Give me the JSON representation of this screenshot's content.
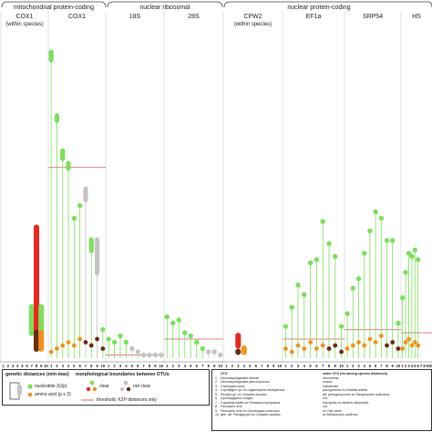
{
  "groups": [
    {
      "label": "mitochondrial protein-coding"
    },
    {
      "label": "nuclear ribosomal"
    },
    {
      "label": "nuclear protein-coding"
    }
  ],
  "colors": {
    "nucleotide_clear": "#7be05a",
    "nucleotide_not_clear": "#c4c4c4",
    "amino_clear": "#f0931e",
    "amino_not_clear": "#6b2a10",
    "red": "#e8281e",
    "threshold": "#e08080",
    "grid": "#b8b8b8"
  },
  "chart_data": {
    "type": "scatter",
    "panels": [
      {
        "title": "COX1",
        "subtitle": "(within species)"
      },
      {
        "title": "COX1",
        "subtitle": ""
      },
      {
        "title": "18S",
        "subtitle": ""
      },
      {
        "title": "28S",
        "subtitle": ""
      },
      {
        "title": "CPW2",
        "subtitle": "(within species)"
      },
      {
        "title": "EF1a",
        "subtitle": ""
      },
      {
        "title": "SRP54",
        "subtitle": ""
      },
      {
        "title": "HS",
        "subtitle": ""
      }
    ],
    "x_tick_labels": [
      "1",
      "2",
      "3",
      "4",
      "5",
      "6",
      "7",
      "8",
      "9",
      "10"
    ],
    "ylim": [
      0,
      1
    ],
    "series": [
      {
        "panel": 0,
        "ranges": [
          {
            "otu": 7,
            "kind": "nuc_clear",
            "min": 0.07,
            "max": 0.17,
            "vmin_color": "#c4c4c4"
          },
          {
            "otu": 8,
            "kind": "red",
            "min": 0.03,
            "max": 0.42
          },
          {
            "otu": 8,
            "kind": "amino",
            "min": 0.02,
            "max": 0.09
          },
          {
            "otu": 9,
            "kind": "nuc_clear",
            "min": 0.07,
            "max": 0.17
          },
          {
            "otu": 9,
            "kind": "amino_clear",
            "min": 0.02,
            "max": 0.09
          }
        ]
      },
      {
        "panel": 1,
        "nuc": [
          {
            "otu": 1,
            "min": 0.93,
            "max": 0.97,
            "clear": true
          },
          {
            "otu": 2,
            "min": 0.74,
            "max": 0.77,
            "clear": true
          },
          {
            "otu": 3,
            "min": 0.62,
            "max": 0.66,
            "clear": true
          },
          {
            "otu": 4,
            "min": 0.59,
            "max": 0.62,
            "clear": true
          },
          {
            "otu": 5,
            "min": 0.42,
            "max": 0.44,
            "clear": true
          },
          {
            "otu": 6,
            "min": 0.46,
            "max": 0.48,
            "clear": true
          },
          {
            "otu": 7,
            "min": 0.49,
            "max": 0.54,
            "clear": false
          },
          {
            "otu": 8,
            "min": 0.33,
            "max": 0.38,
            "clear": true
          },
          {
            "otu": 9,
            "min": 0.26,
            "max": 0.38,
            "clear": false
          },
          {
            "otu": 10,
            "min": 0.07,
            "max": 0.09,
            "clear": true
          }
        ],
        "amino": [
          {
            "otu": 1,
            "v": 0.02,
            "clear": true
          },
          {
            "otu": 2,
            "v": 0.03,
            "clear": true
          },
          {
            "otu": 3,
            "v": 0.04,
            "clear": true
          },
          {
            "otu": 4,
            "v": 0.05,
            "clear": true
          },
          {
            "otu": 5,
            "v": 0.04,
            "clear": true
          },
          {
            "otu": 6,
            "v": 0.06,
            "clear": true
          },
          {
            "otu": 7,
            "v": 0.05,
            "clear": false
          },
          {
            "otu": 8,
            "v": 0.04,
            "clear": false
          },
          {
            "otu": 9,
            "v": 0.06,
            "clear": false
          },
          {
            "otu": 10,
            "v": 0.03,
            "clear": false
          }
        ],
        "threshold": 0.6
      },
      {
        "panel": 2,
        "nuc": [
          {
            "otu": 1,
            "v": 0.06,
            "clear": true
          },
          {
            "otu": 2,
            "v": 0.05,
            "clear": true
          },
          {
            "otu": 3,
            "v": 0.07,
            "clear": true
          },
          {
            "otu": 4,
            "v": 0.05,
            "clear": true
          },
          {
            "otu": 5,
            "v": 0.03,
            "clear": false
          },
          {
            "otu": 6,
            "v": 0.02,
            "clear": false
          },
          {
            "otu": 7,
            "v": 0.01,
            "clear": false
          },
          {
            "otu": 8,
            "v": 0.01,
            "clear": false
          },
          {
            "otu": 9,
            "v": 0.01,
            "clear": false
          },
          {
            "otu": 10,
            "v": 0.01,
            "clear": false
          }
        ],
        "threshold": 0.01
      },
      {
        "panel": 3,
        "nuc": [
          {
            "otu": 1,
            "v": 0.13,
            "clear": true
          },
          {
            "otu": 2,
            "v": 0.11,
            "clear": true
          },
          {
            "otu": 3,
            "v": 0.12,
            "clear": true
          },
          {
            "otu": 4,
            "v": 0.08,
            "clear": true
          },
          {
            "otu": 5,
            "v": 0.07,
            "clear": true
          },
          {
            "otu": 6,
            "v": 0.05,
            "clear": true
          },
          {
            "otu": 7,
            "v": 0.03,
            "clear": true
          },
          {
            "otu": 8,
            "v": 0.02,
            "clear": false
          },
          {
            "otu": 9,
            "v": 0.02,
            "clear": false
          },
          {
            "otu": 10,
            "v": 0.01,
            "clear": false
          }
        ],
        "threshold": 0.06
      },
      {
        "panel": 4,
        "ranges": [
          {
            "otu": 3,
            "kind": "red",
            "min": 0.03,
            "max": 0.08
          },
          {
            "otu": 4,
            "kind": "amino_clear",
            "min": 0.01,
            "max": 0.04
          },
          {
            "otu": 3,
            "kind": "amino",
            "min": 0.01,
            "max": 0.03
          }
        ]
      },
      {
        "panel": 5,
        "nuc": [
          {
            "otu": 1,
            "v": 0.1,
            "clear": true
          },
          {
            "otu": 2,
            "v": 0.16,
            "clear": true
          },
          {
            "otu": 3,
            "v": 0.23,
            "clear": true
          },
          {
            "otu": 4,
            "v": 0.2,
            "clear": true
          },
          {
            "otu": 5,
            "v": 0.3,
            "clear": true
          },
          {
            "otu": 6,
            "v": 0.31,
            "clear": true
          },
          {
            "otu": 7,
            "v": 0.43,
            "clear": true
          },
          {
            "otu": 8,
            "v": 0.36,
            "clear": true
          },
          {
            "otu": 9,
            "v": 0.32,
            "clear": true
          },
          {
            "otu": 10,
            "v": 0.1,
            "clear": true
          }
        ],
        "amino": [
          {
            "otu": 1,
            "v": 0.03,
            "clear": true
          },
          {
            "otu": 2,
            "v": 0.02,
            "clear": true
          },
          {
            "otu": 3,
            "v": 0.04,
            "clear": true
          },
          {
            "otu": 4,
            "v": 0.03,
            "clear": true
          },
          {
            "otu": 5,
            "v": 0.05,
            "clear": true
          },
          {
            "otu": 6,
            "v": 0.03,
            "clear": true
          },
          {
            "otu": 7,
            "v": 0.04,
            "clear": true
          },
          {
            "otu": 8,
            "v": 0.03,
            "clear": false
          },
          {
            "otu": 9,
            "v": 0.04,
            "clear": false
          },
          {
            "otu": 10,
            "v": 0.02,
            "clear": false
          }
        ],
        "threshold": 0.06
      },
      {
        "panel": 6,
        "nuc": [
          {
            "otu": 1,
            "v": 0.14,
            "clear": true
          },
          {
            "otu": 2,
            "v": 0.22,
            "clear": true
          },
          {
            "otu": 3,
            "v": 0.25,
            "clear": true
          },
          {
            "otu": 4,
            "v": 0.33,
            "clear": true
          },
          {
            "otu": 5,
            "v": 0.4,
            "clear": true
          },
          {
            "otu": 6,
            "v": 0.46,
            "clear": true
          },
          {
            "otu": 7,
            "v": 0.44,
            "clear": true
          },
          {
            "otu": 8,
            "v": 0.37,
            "clear": true
          },
          {
            "otu": 9,
            "v": 0.37,
            "clear": true
          },
          {
            "otu": 10,
            "v": 0.11,
            "clear": true
          }
        ],
        "amino": [
          {
            "otu": 1,
            "v": 0.03,
            "clear": true
          },
          {
            "otu": 2,
            "v": 0.04,
            "clear": true
          },
          {
            "otu": 3,
            "v": 0.05,
            "clear": true
          },
          {
            "otu": 4,
            "v": 0.04,
            "clear": true
          },
          {
            "otu": 5,
            "v": 0.06,
            "clear": true
          },
          {
            "otu": 6,
            "v": 0.05,
            "clear": true
          },
          {
            "otu": 7,
            "v": 0.07,
            "clear": true
          },
          {
            "otu": 8,
            "v": 0.04,
            "clear": false
          },
          {
            "otu": 9,
            "v": 0.05,
            "clear": false
          },
          {
            "otu": 10,
            "v": 0.03,
            "clear": false
          }
        ],
        "threshold": 0.09
      },
      {
        "panel": 7,
        "nuc": [
          {
            "otu": 1,
            "v": 0.19,
            "clear": true
          },
          {
            "otu": 2,
            "v": 0.27,
            "clear": true
          },
          {
            "otu": 3,
            "v": 0.33,
            "clear": true
          },
          {
            "otu": 4,
            "v": 0.32,
            "clear": true
          },
          {
            "otu": 5,
            "v": 0.34,
            "clear": true
          },
          {
            "otu": 6,
            "v": 0.31,
            "clear": true
          }
        ],
        "amino": [
          {
            "otu": 1,
            "v": 0.03,
            "clear": true
          },
          {
            "otu": 2,
            "v": 0.05,
            "clear": true
          },
          {
            "otu": 3,
            "v": 0.06,
            "clear": true
          },
          {
            "otu": 4,
            "v": 0.04,
            "clear": true
          },
          {
            "otu": 5,
            "v": 0.05,
            "clear": true
          },
          {
            "otu": 6,
            "v": 0.04,
            "clear": true
          }
        ],
        "threshold": 0.08
      }
    ]
  },
  "legend": {
    "genetic_title": "genetic distances (min-max)",
    "nucleotide_label": "nucleotide (k2p)",
    "amino_label": "amino acid (p x 3)",
    "morph_title": "morphological boundaries between OTUs",
    "clear_label": "clear",
    "not_clear_label": "not clear",
    "threshold_label": "threshold, K2P distances only"
  },
  "otu_table": {
    "col_otu": "OTU",
    "col_sister": "sister OTU (for among species distances)",
    "rows": [
      {
        "n": "1",
        "otu": "Dermatophagoides farinae",
        "sister": "microceras"
      },
      {
        "n": "2",
        "otu": "Dermatophagoides pteronyssinus",
        "sister": "evansi"
      },
      {
        "n": "3",
        "otu": "Chorioptes bovis",
        "sister": "sweatmani"
      },
      {
        "n": "4",
        "otu": "Orycteliges sp. ex Lagomorpha rhodopensis",
        "sister": "pachypothus ex Estrilda astrild"
      },
      {
        "n": "5",
        "otu": "Picobia sp. ex Colaptes auratus",
        "sister": "aff. pteroglossorum ex Ramphastos sulfuratus"
      },
      {
        "n": "6",
        "otu": "Gymnoglyphus longior",
        "sister": "n/a"
      },
      {
        "n": "7",
        "otu": "Caparinia tripilis ex Erinaceus europaeus",
        "sister": "ictonycitis ex Atelerix albiventris"
      },
      {
        "n": "8",
        "otu": "Psoroptes ovis",
        "sister": "n/a"
      },
      {
        "n": "9",
        "otu": "Psoroptes ovis ex Oryctolagus cuniculus",
        "sister": "ex Ovis aries"
      },
      {
        "n": "10",
        "otu": "gen. aff. Paralgopsis ex Colaptes auratus",
        "sister": "ex Melanerpes aurifrons"
      }
    ]
  }
}
